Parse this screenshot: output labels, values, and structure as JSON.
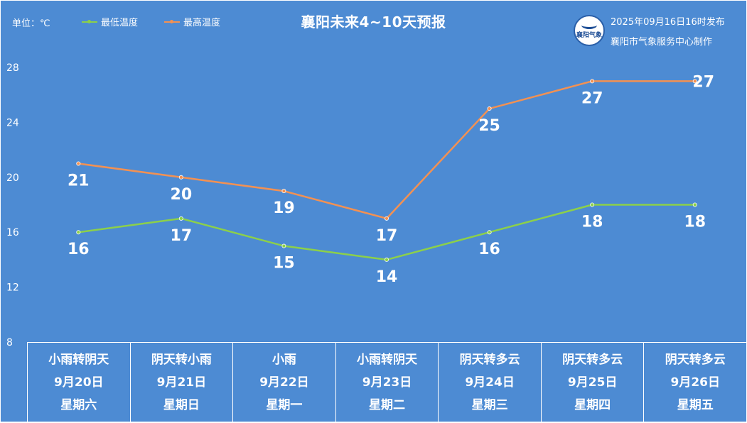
{
  "header": {
    "unit_label": "单位：℃",
    "title": "襄阳未来4~10天预报",
    "published": "2025年09月16日16时发布",
    "maker": "襄阳市气象服务中心制作",
    "logo_mark": "襄阳气象"
  },
  "legend": [
    {
      "label": "最低温度",
      "color": "#8cd04a"
    },
    {
      "label": "最高温度",
      "color": "#f39152"
    }
  ],
  "chart_data": {
    "type": "line",
    "title": "襄阳未来4~10天预报",
    "ylabel": "单位：℃",
    "ylim": [
      8,
      28
    ],
    "yticks": [
      8,
      12,
      16,
      20,
      24,
      28
    ],
    "grid": false,
    "legend_position": "top-left",
    "categories": [
      "9月20日",
      "9月21日",
      "9月22日",
      "9月23日",
      "9月24日",
      "9月25日",
      "9月26日"
    ],
    "series": [
      {
        "name": "最高温度",
        "color": "#f39152",
        "values": [
          21,
          20,
          19,
          17,
          25,
          27,
          27
        ]
      },
      {
        "name": "最低温度",
        "color": "#8cd04a",
        "values": [
          16,
          17,
          15,
          14,
          16,
          18,
          18
        ]
      }
    ]
  },
  "days": [
    {
      "weather": "小雨转阴天",
      "date": "9月20日",
      "weekday": "星期六"
    },
    {
      "weather": "阴天转小雨",
      "date": "9月21日",
      "weekday": "星期日"
    },
    {
      "weather": "小雨",
      "date": "9月22日",
      "weekday": "星期一"
    },
    {
      "weather": "小雨转阴天",
      "date": "9月23日",
      "weekday": "星期二"
    },
    {
      "weather": "阴天转多云",
      "date": "9月24日",
      "weekday": "星期三"
    },
    {
      "weather": "阴天转多云",
      "date": "9月25日",
      "weekday": "星期四"
    },
    {
      "weather": "阴天转多云",
      "date": "9月26日",
      "weekday": "星期五"
    }
  ]
}
